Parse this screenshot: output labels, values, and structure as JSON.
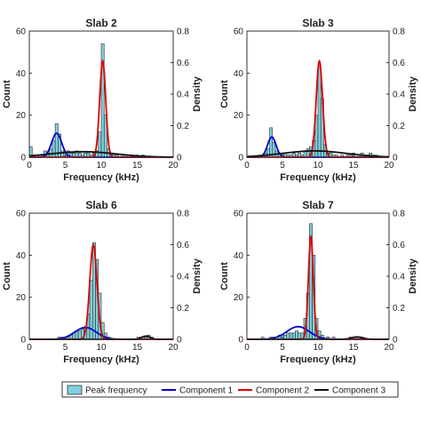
{
  "legend": {
    "entries": [
      {
        "name": "Peak frequency",
        "type": "bar",
        "color": "#7fd0dc"
      },
      {
        "name": "Component 1",
        "type": "line",
        "color": "#0000cc"
      },
      {
        "name": "Component 2",
        "type": "line",
        "color": "#dd0000"
      },
      {
        "name": "Component 3",
        "type": "line",
        "color": "#111111"
      }
    ]
  },
  "chart_data": [
    {
      "type": "bar",
      "title": "Slab 2",
      "xlabel": "Frequency (kHz)",
      "ylabel": "Count",
      "y2label": "Density",
      "xlim": [
        0,
        20
      ],
      "ylim": [
        0,
        60
      ],
      "y2lim": [
        0,
        0.8
      ],
      "xticks": [
        "0",
        "5",
        "10",
        "15",
        "20"
      ],
      "yticks": [
        "0",
        "20",
        "40",
        "60"
      ],
      "y2ticks": [
        "0",
        "0.2",
        "0.4",
        "0.6",
        "0.8"
      ],
      "bin_width": 0.4,
      "bins": [
        [
          0,
          5
        ],
        [
          0.4,
          1
        ],
        [
          0.8,
          0
        ],
        [
          1.2,
          1
        ],
        [
          1.6,
          1
        ],
        [
          2,
          3
        ],
        [
          2.4,
          2
        ],
        [
          2.8,
          4
        ],
        [
          3.2,
          8
        ],
        [
          3.6,
          16
        ],
        [
          4,
          11
        ],
        [
          4.4,
          3
        ],
        [
          4.8,
          2
        ],
        [
          5.2,
          3
        ],
        [
          5.6,
          2
        ],
        [
          6,
          2
        ],
        [
          6.4,
          3
        ],
        [
          6.8,
          2
        ],
        [
          7.2,
          1
        ],
        [
          7.6,
          2
        ],
        [
          8,
          2
        ],
        [
          8.4,
          1
        ],
        [
          8.8,
          2
        ],
        [
          9.2,
          3
        ],
        [
          9.6,
          12
        ],
        [
          10,
          54
        ],
        [
          10.4,
          20
        ],
        [
          10.8,
          4
        ],
        [
          11.2,
          2
        ],
        [
          11.6,
          1
        ],
        [
          12,
          1
        ],
        [
          12.4,
          0
        ],
        [
          12.8,
          1
        ],
        [
          13.2,
          1
        ],
        [
          13.6,
          0
        ],
        [
          14,
          1
        ],
        [
          14.4,
          0
        ],
        [
          14.8,
          1
        ],
        [
          15.2,
          0
        ],
        [
          15.6,
          1
        ]
      ],
      "components": [
        {
          "name": "Component 1",
          "amp": 0.152,
          "mu": 3.8,
          "sigma": 0.7
        },
        {
          "name": "Component 2",
          "amp": 0.61,
          "mu": 10.2,
          "sigma": 0.42
        },
        {
          "name": "Component 3",
          "amp": 0.035,
          "mu": 7.5,
          "sigma": 4.5
        }
      ]
    },
    {
      "type": "bar",
      "title": "Slab 3",
      "xlabel": "Frequency (kHz)",
      "ylabel": "Count",
      "y2label": "Density",
      "xlim": [
        0,
        20
      ],
      "ylim": [
        0,
        60
      ],
      "y2lim": [
        0,
        0.8
      ],
      "xticks": [
        "0",
        "5",
        "10",
        "15",
        "20"
      ],
      "yticks": [
        "0",
        "20",
        "40",
        "60"
      ],
      "y2ticks": [
        "0",
        "0.2",
        "0.4",
        "0.6",
        "0.8"
      ],
      "bin_width": 0.4,
      "bins": [
        [
          1.6,
          1
        ],
        [
          2,
          1
        ],
        [
          2.4,
          2
        ],
        [
          2.8,
          4
        ],
        [
          3.2,
          14
        ],
        [
          3.6,
          7
        ],
        [
          4,
          3
        ],
        [
          4.4,
          2
        ],
        [
          4.8,
          2
        ],
        [
          5.2,
          2
        ],
        [
          5.6,
          1
        ],
        [
          6,
          1
        ],
        [
          6.4,
          2
        ],
        [
          6.8,
          1
        ],
        [
          7.2,
          2
        ],
        [
          7.6,
          1
        ],
        [
          8,
          3
        ],
        [
          8.4,
          4
        ],
        [
          8.8,
          5
        ],
        [
          9.2,
          8
        ],
        [
          9.6,
          20
        ],
        [
          10,
          43
        ],
        [
          10.4,
          28
        ],
        [
          10.8,
          6
        ],
        [
          11.2,
          2
        ],
        [
          11.6,
          2
        ],
        [
          12,
          1
        ],
        [
          12.4,
          1
        ],
        [
          12.8,
          0
        ],
        [
          13.2,
          1
        ],
        [
          13.6,
          0
        ],
        [
          14,
          1
        ],
        [
          14.4,
          1
        ],
        [
          14.8,
          2
        ],
        [
          15.2,
          0
        ],
        [
          15.6,
          1
        ],
        [
          16,
          2
        ],
        [
          16.4,
          1
        ],
        [
          16.8,
          1
        ],
        [
          17.2,
          2
        ],
        [
          17.6,
          1
        ],
        [
          18,
          1
        ]
      ],
      "components": [
        {
          "name": "Component 1",
          "amp": 0.128,
          "mu": 3.5,
          "sigma": 0.6
        },
        {
          "name": "Component 2",
          "amp": 0.61,
          "mu": 10.2,
          "sigma": 0.45
        },
        {
          "name": "Component 3",
          "amp": 0.04,
          "mu": 9.5,
          "sigma": 4.5
        }
      ]
    },
    {
      "type": "bar",
      "title": "Slab 6",
      "xlabel": "Frequency (kHz)",
      "ylabel": "Count",
      "y2label": "Density",
      "xlim": [
        0,
        20
      ],
      "ylim": [
        0,
        60
      ],
      "y2lim": [
        0,
        0.8
      ],
      "xticks": [
        "0",
        "5",
        "10",
        "15",
        "20"
      ],
      "yticks": [
        "0",
        "20",
        "40",
        "60"
      ],
      "y2ticks": [
        "0",
        "0.2",
        "0.4",
        "0.6",
        "0.8"
      ],
      "bin_width": 0.4,
      "bins": [
        [
          4,
          1
        ],
        [
          4.4,
          1
        ],
        [
          4.8,
          1
        ],
        [
          5.2,
          1
        ],
        [
          5.6,
          2
        ],
        [
          6,
          3
        ],
        [
          6.4,
          4
        ],
        [
          6.8,
          4
        ],
        [
          7.2,
          5
        ],
        [
          7.6,
          6
        ],
        [
          8,
          12
        ],
        [
          8.4,
          28
        ],
        [
          8.8,
          46
        ],
        [
          9.2,
          38
        ],
        [
          9.6,
          22
        ],
        [
          10,
          8
        ],
        [
          10.4,
          3
        ],
        [
          10.8,
          1
        ],
        [
          15.2,
          1
        ],
        [
          15.6,
          1
        ],
        [
          16,
          1
        ],
        [
          16.4,
          2
        ],
        [
          16.8,
          1
        ]
      ],
      "components": [
        {
          "name": "Component 1",
          "amp": 0.075,
          "mu": 7.8,
          "sigma": 1.5
        },
        {
          "name": "Component 2",
          "amp": 0.6,
          "mu": 8.9,
          "sigma": 0.5
        },
        {
          "name": "Component 3",
          "amp": 0.02,
          "mu": 16.2,
          "sigma": 0.6
        }
      ]
    },
    {
      "type": "bar",
      "title": "Slab 7",
      "xlabel": "Frequency (kHz)",
      "ylabel": "Count",
      "y2label": "Density",
      "xlim": [
        0,
        20
      ],
      "ylim": [
        0,
        60
      ],
      "y2lim": [
        0,
        0.8
      ],
      "xticks": [
        "0",
        "5",
        "10",
        "15",
        "20"
      ],
      "yticks": [
        "0",
        "20",
        "40",
        "60"
      ],
      "y2ticks": [
        "0",
        "0.2",
        "0.4",
        "0.6",
        "0.8"
      ],
      "bin_width": 0.4,
      "bins": [
        [
          2,
          1
        ],
        [
          3.2,
          1
        ],
        [
          3.6,
          1
        ],
        [
          4.4,
          2
        ],
        [
          4.8,
          2
        ],
        [
          5.2,
          2
        ],
        [
          5.6,
          3
        ],
        [
          6,
          3
        ],
        [
          6.4,
          3
        ],
        [
          6.8,
          4
        ],
        [
          7.2,
          3
        ],
        [
          7.6,
          3
        ],
        [
          8,
          10
        ],
        [
          8.4,
          22
        ],
        [
          8.8,
          55
        ],
        [
          9.2,
          40
        ],
        [
          9.6,
          10
        ],
        [
          10,
          4
        ],
        [
          10.4,
          2
        ],
        [
          11.2,
          1
        ],
        [
          12,
          1
        ],
        [
          14.4,
          1
        ],
        [
          15.2,
          1
        ],
        [
          15.6,
          1
        ],
        [
          16,
          1
        ]
      ],
      "components": [
        {
          "name": "Component 1",
          "amp": 0.08,
          "mu": 7.2,
          "sigma": 1.6
        },
        {
          "name": "Component 2",
          "amp": 0.65,
          "mu": 9.0,
          "sigma": 0.35
        },
        {
          "name": "Component 3",
          "amp": 0.015,
          "mu": 15.5,
          "sigma": 0.8
        }
      ]
    }
  ]
}
